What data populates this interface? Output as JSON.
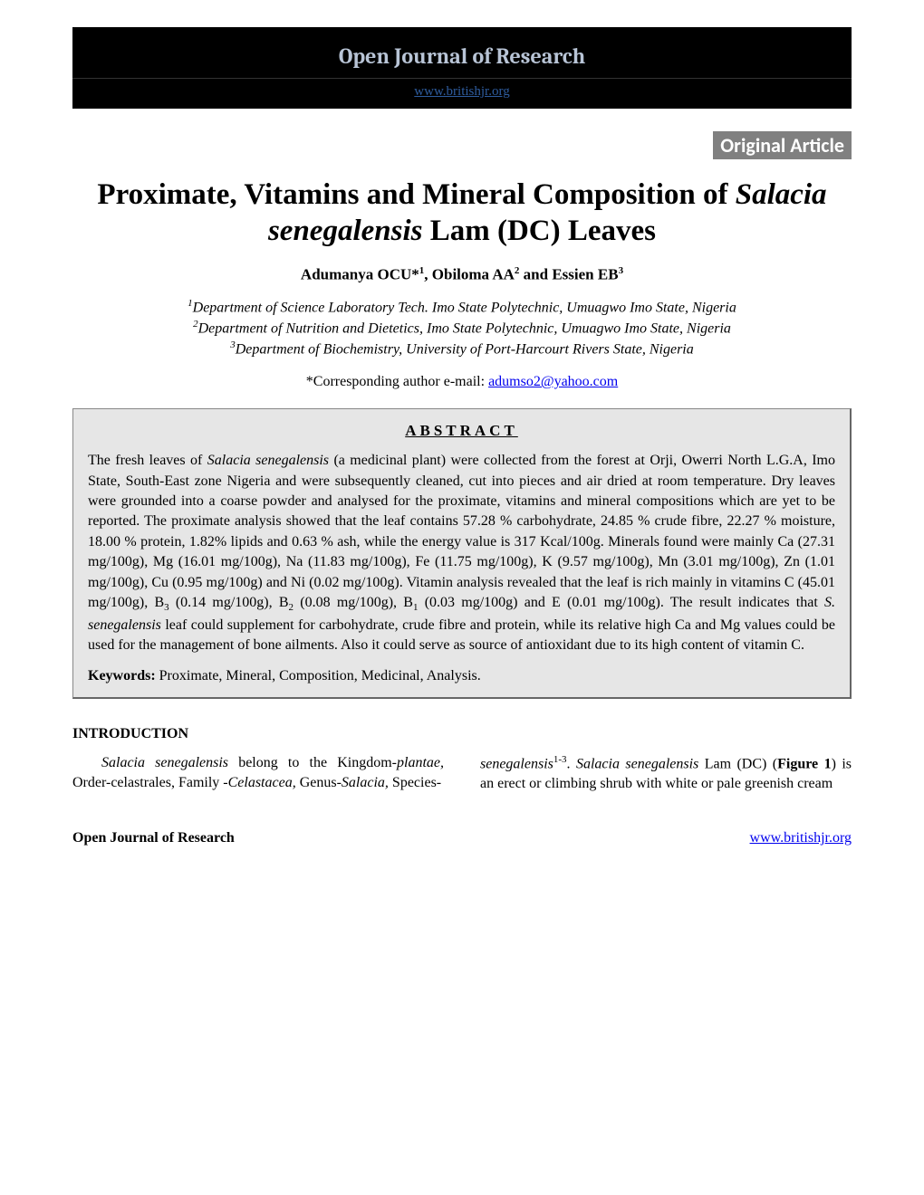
{
  "header": {
    "journal_name": "Open Journal of Research",
    "journal_url": "www.britishjr.org"
  },
  "article_type": "Original Article",
  "title": {
    "part1": "Proximate, Vitamins and Mineral Composition of ",
    "italic": "Salacia senegalensis",
    "part2": " Lam (DC) Leaves"
  },
  "authors": {
    "a1_name": "Adumanya OCU*",
    "a1_sup": "1",
    "sep1": ", ",
    "a2_name": "Obiloma AA",
    "a2_sup": "2",
    "sep2": " and ",
    "a3_name": "Essien EB",
    "a3_sup": "3"
  },
  "affiliations": {
    "a1_sup": "1",
    "a1_text": "Department of Science Laboratory Tech. Imo State Polytechnic, Umuagwo Imo State, Nigeria",
    "a2_sup": "2",
    "a2_text": "Department of Nutrition and Dietetics, Imo State Polytechnic, Umuagwo Imo State, Nigeria",
    "a3_sup": "3",
    "a3_text": "Department of Biochemistry, University of Port-Harcourt Rivers State, Nigeria"
  },
  "corresponding": {
    "label": "*Corresponding author e-mail: ",
    "email": "adumso2@yahoo.com"
  },
  "abstract": {
    "heading": "ABSTRACT",
    "p1_a": "The fresh leaves of ",
    "p1_i1": "Salacia senegalensis",
    "p1_b": " (a medicinal plant) were collected from the forest at Orji, Owerri North L.G.A, Imo State, South-East zone Nigeria and were subsequently cleaned, cut into pieces and air dried at room temperature. Dry leaves were grounded into a coarse powder and analysed for the proximate, vitamins and mineral compositions which are yet to be reported. The proximate analysis showed that the leaf contains 57.28 % carbohydrate, 24.85 % crude fibre, 22.27 % moisture, 18.00 % protein, 1.82% lipids and 0.63 % ash, while the energy value is 317 Kcal/100g. Minerals found were mainly Ca (27.31 mg/100g), Mg (16.01 mg/100g), Na (11.83 mg/100g), Fe (11.75 mg/100g), K (9.57 mg/100g), Mn (3.01 mg/100g), Zn (1.01 mg/100g), Cu (0.95 mg/100g) and Ni (0.02 mg/100g). Vitamin analysis revealed that the leaf is rich mainly in vitamins C (45.01 mg/100g), B",
    "p1_sub1": "3",
    "p1_c": " (0.14 mg/100g), B",
    "p1_sub2": "2",
    "p1_d": " (0.08 mg/100g), B",
    "p1_sub3": "1",
    "p1_e": " (0.03 mg/100g) and E (0.01 mg/100g). The result indicates that ",
    "p1_i2": "S. senegalensis",
    "p1_f": " leaf could supplement for carbohydrate, crude fibre and protein, while its relative high Ca and Mg values could be used for the management of bone ailments. Also it could serve as source of antioxidant due to its high content of vitamin C."
  },
  "keywords": {
    "label": "Keywords: ",
    "text": "Proximate, Mineral, Composition, Medicinal, Analysis."
  },
  "intro": {
    "heading": "INTRODUCTION",
    "col1_a": "Salacia senegalensis",
    "col1_b": " belong to the Kingdom-",
    "col1_i2": "plantae,",
    "col1_c": " Order-celastrales, Family -",
    "col1_i3": "Celastacea,",
    "col1_d": " Genus-",
    "col1_i4": "Salacia,",
    "col1_e": " Species-",
    "col2_i1": "senegalensis",
    "col2_sup": "1-3",
    "col2_a": ". ",
    "col2_i2": "Salacia senegalensis",
    "col2_b": " Lam (DC) (",
    "col2_bold": "Figure 1",
    "col2_c": ") is an erect or climbing shrub with white or pale greenish cream"
  },
  "footer": {
    "left": "Open Journal of Research",
    "right": "www.britishjr.org"
  }
}
